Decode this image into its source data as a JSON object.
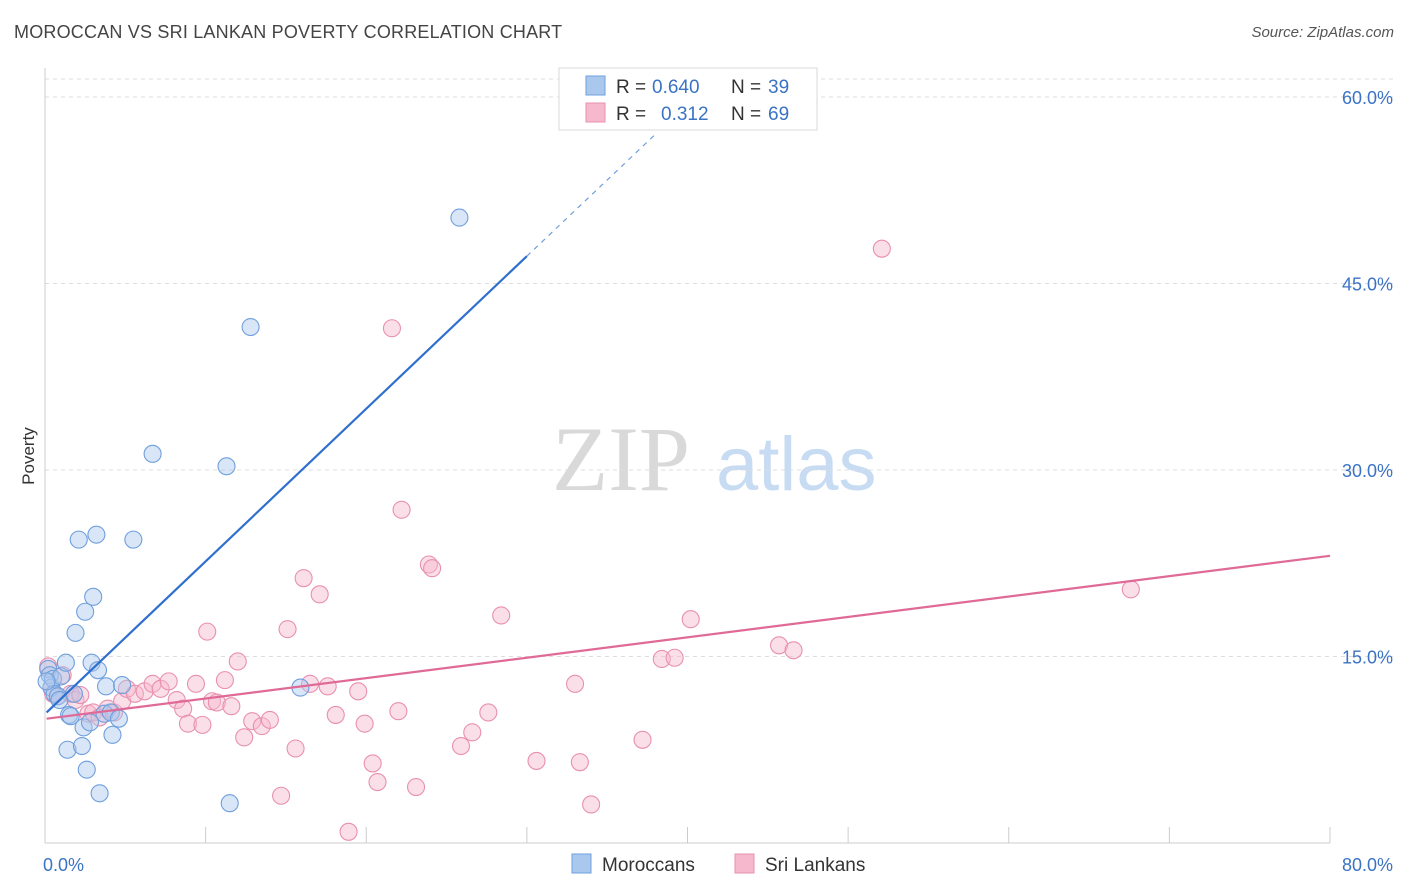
{
  "header": {
    "title": "MOROCCAN VS SRI LANKAN POVERTY CORRELATION CHART",
    "source": "Source: ZipAtlas.com"
  },
  "watermark": {
    "zip": "ZIP",
    "atlas": "atlas"
  },
  "legend_top": {
    "rows": [
      {
        "r_label": "R =",
        "r_value": "0.640",
        "n_label": "N =",
        "n_value": "39"
      },
      {
        "r_label": "R =",
        "r_value": "0.312",
        "n_label": "N =",
        "n_value": "69"
      }
    ]
  },
  "legend_bottom": {
    "series_a": "Moroccans",
    "series_b": "Sri Lankans"
  },
  "colors": {
    "blue_fill": "#aac8ee",
    "blue_stroke": "#6f9fdc",
    "blue_line": "#2f6fce",
    "pink_fill": "#f6b8cc",
    "pink_stroke": "#e890b0",
    "pink_line": "#e06a96",
    "tick_text": "#3b73c4",
    "grid": "#dddddd"
  },
  "chart_data": {
    "type": "scatter",
    "title": "MOROCCAN VS SRI LANKAN POVERTY CORRELATION CHART",
    "xlabel": "",
    "ylabel": "Poverty",
    "xlim": [
      0,
      80
    ],
    "ylim": [
      0,
      60
    ],
    "x_tick_labels": [
      "0.0%",
      "80.0%"
    ],
    "y_ticks": [
      15,
      30,
      45,
      60
    ],
    "y_tick_labels": [
      "15.0%",
      "30.0%",
      "45.0%",
      "60.0%"
    ],
    "grid": true,
    "legend_placement": "top-center",
    "series": [
      {
        "name": "Moroccans",
        "color": "#6f9fdc",
        "R": 0.64,
        "N": 39,
        "trend": {
          "x_start": 0.1,
          "y_start": 10.5,
          "x_solid_end": 30.0,
          "y_solid_end": 47.2,
          "x_dashed_end": 38.0,
          "y_dashed_end": 57.0
        },
        "points": [
          [
            0.2,
            14.0
          ],
          [
            0.3,
            13.5
          ],
          [
            0.4,
            12.5
          ],
          [
            0.5,
            13.2
          ],
          [
            0.6,
            12.0
          ],
          [
            0.8,
            11.8
          ],
          [
            0.9,
            11.5
          ],
          [
            1.0,
            13.4
          ],
          [
            1.3,
            14.5
          ],
          [
            1.4,
            7.5
          ],
          [
            1.5,
            10.3
          ],
          [
            1.6,
            10.2
          ],
          [
            1.8,
            12.0
          ],
          [
            1.9,
            16.9
          ],
          [
            2.1,
            24.4
          ],
          [
            2.3,
            7.8
          ],
          [
            2.4,
            9.3
          ],
          [
            2.5,
            18.6
          ],
          [
            2.6,
            5.9
          ],
          [
            2.8,
            9.7
          ],
          [
            2.9,
            14.5
          ],
          [
            3.0,
            19.8
          ],
          [
            3.2,
            24.8
          ],
          [
            3.3,
            13.9
          ],
          [
            3.4,
            4.0
          ],
          [
            3.7,
            10.4
          ],
          [
            3.8,
            12.6
          ],
          [
            4.1,
            10.5
          ],
          [
            4.2,
            8.7
          ],
          [
            4.6,
            10.0
          ],
          [
            4.8,
            12.7
          ],
          [
            5.5,
            24.4
          ],
          [
            6.7,
            31.3
          ],
          [
            11.3,
            30.3
          ],
          [
            11.5,
            3.2
          ],
          [
            12.8,
            41.5
          ],
          [
            15.9,
            12.5
          ],
          [
            25.8,
            50.3
          ],
          [
            0.1,
            13.0
          ]
        ]
      },
      {
        "name": "Sri Lankans",
        "color": "#e890b0",
        "R": 0.312,
        "N": 69,
        "trend": {
          "x_start": 0.1,
          "y_start": 10.0,
          "x_end": 80.0,
          "y_end": 23.1
        },
        "points": [
          [
            0.2,
            14.2
          ],
          [
            0.5,
            12.0
          ],
          [
            0.8,
            11.8
          ],
          [
            1.1,
            13.5
          ],
          [
            1.6,
            12.0
          ],
          [
            1.9,
            11.5
          ],
          [
            2.2,
            11.9
          ],
          [
            2.7,
            10.4
          ],
          [
            3.0,
            10.5
          ],
          [
            3.4,
            10.1
          ],
          [
            3.9,
            10.8
          ],
          [
            4.3,
            10.5
          ],
          [
            4.8,
            11.4
          ],
          [
            5.1,
            12.4
          ],
          [
            5.6,
            12.0
          ],
          [
            6.2,
            12.2
          ],
          [
            6.7,
            12.8
          ],
          [
            7.2,
            12.4
          ],
          [
            7.7,
            13.0
          ],
          [
            8.2,
            11.5
          ],
          [
            8.6,
            10.8
          ],
          [
            8.9,
            9.6
          ],
          [
            9.4,
            12.8
          ],
          [
            9.8,
            9.5
          ],
          [
            10.1,
            17.0
          ],
          [
            10.4,
            11.4
          ],
          [
            10.7,
            11.3
          ],
          [
            11.2,
            13.1
          ],
          [
            11.6,
            11.0
          ],
          [
            12.0,
            14.6
          ],
          [
            12.4,
            8.5
          ],
          [
            12.9,
            9.8
          ],
          [
            13.5,
            9.4
          ],
          [
            14.0,
            9.9
          ],
          [
            14.7,
            3.8
          ],
          [
            15.1,
            17.2
          ],
          [
            15.6,
            7.6
          ],
          [
            16.1,
            21.3
          ],
          [
            16.5,
            12.8
          ],
          [
            17.1,
            20.0
          ],
          [
            17.6,
            12.6
          ],
          [
            18.1,
            10.3
          ],
          [
            18.9,
            0.9
          ],
          [
            19.5,
            12.2
          ],
          [
            19.9,
            9.6
          ],
          [
            20.4,
            6.4
          ],
          [
            20.7,
            4.9
          ],
          [
            21.6,
            41.4
          ],
          [
            22.0,
            10.6
          ],
          [
            22.2,
            26.8
          ],
          [
            23.1,
            4.5
          ],
          [
            23.9,
            22.4
          ],
          [
            24.1,
            22.1
          ],
          [
            25.9,
            7.8
          ],
          [
            26.6,
            8.9
          ],
          [
            27.6,
            10.5
          ],
          [
            28.4,
            18.3
          ],
          [
            30.6,
            6.6
          ],
          [
            33.0,
            12.8
          ],
          [
            33.3,
            6.5
          ],
          [
            34.0,
            3.1
          ],
          [
            37.2,
            8.3
          ],
          [
            38.4,
            14.8
          ],
          [
            39.2,
            14.9
          ],
          [
            40.2,
            18.0
          ],
          [
            45.7,
            15.9
          ],
          [
            46.6,
            15.5
          ],
          [
            52.1,
            47.8
          ],
          [
            67.6,
            20.4
          ]
        ]
      }
    ]
  }
}
